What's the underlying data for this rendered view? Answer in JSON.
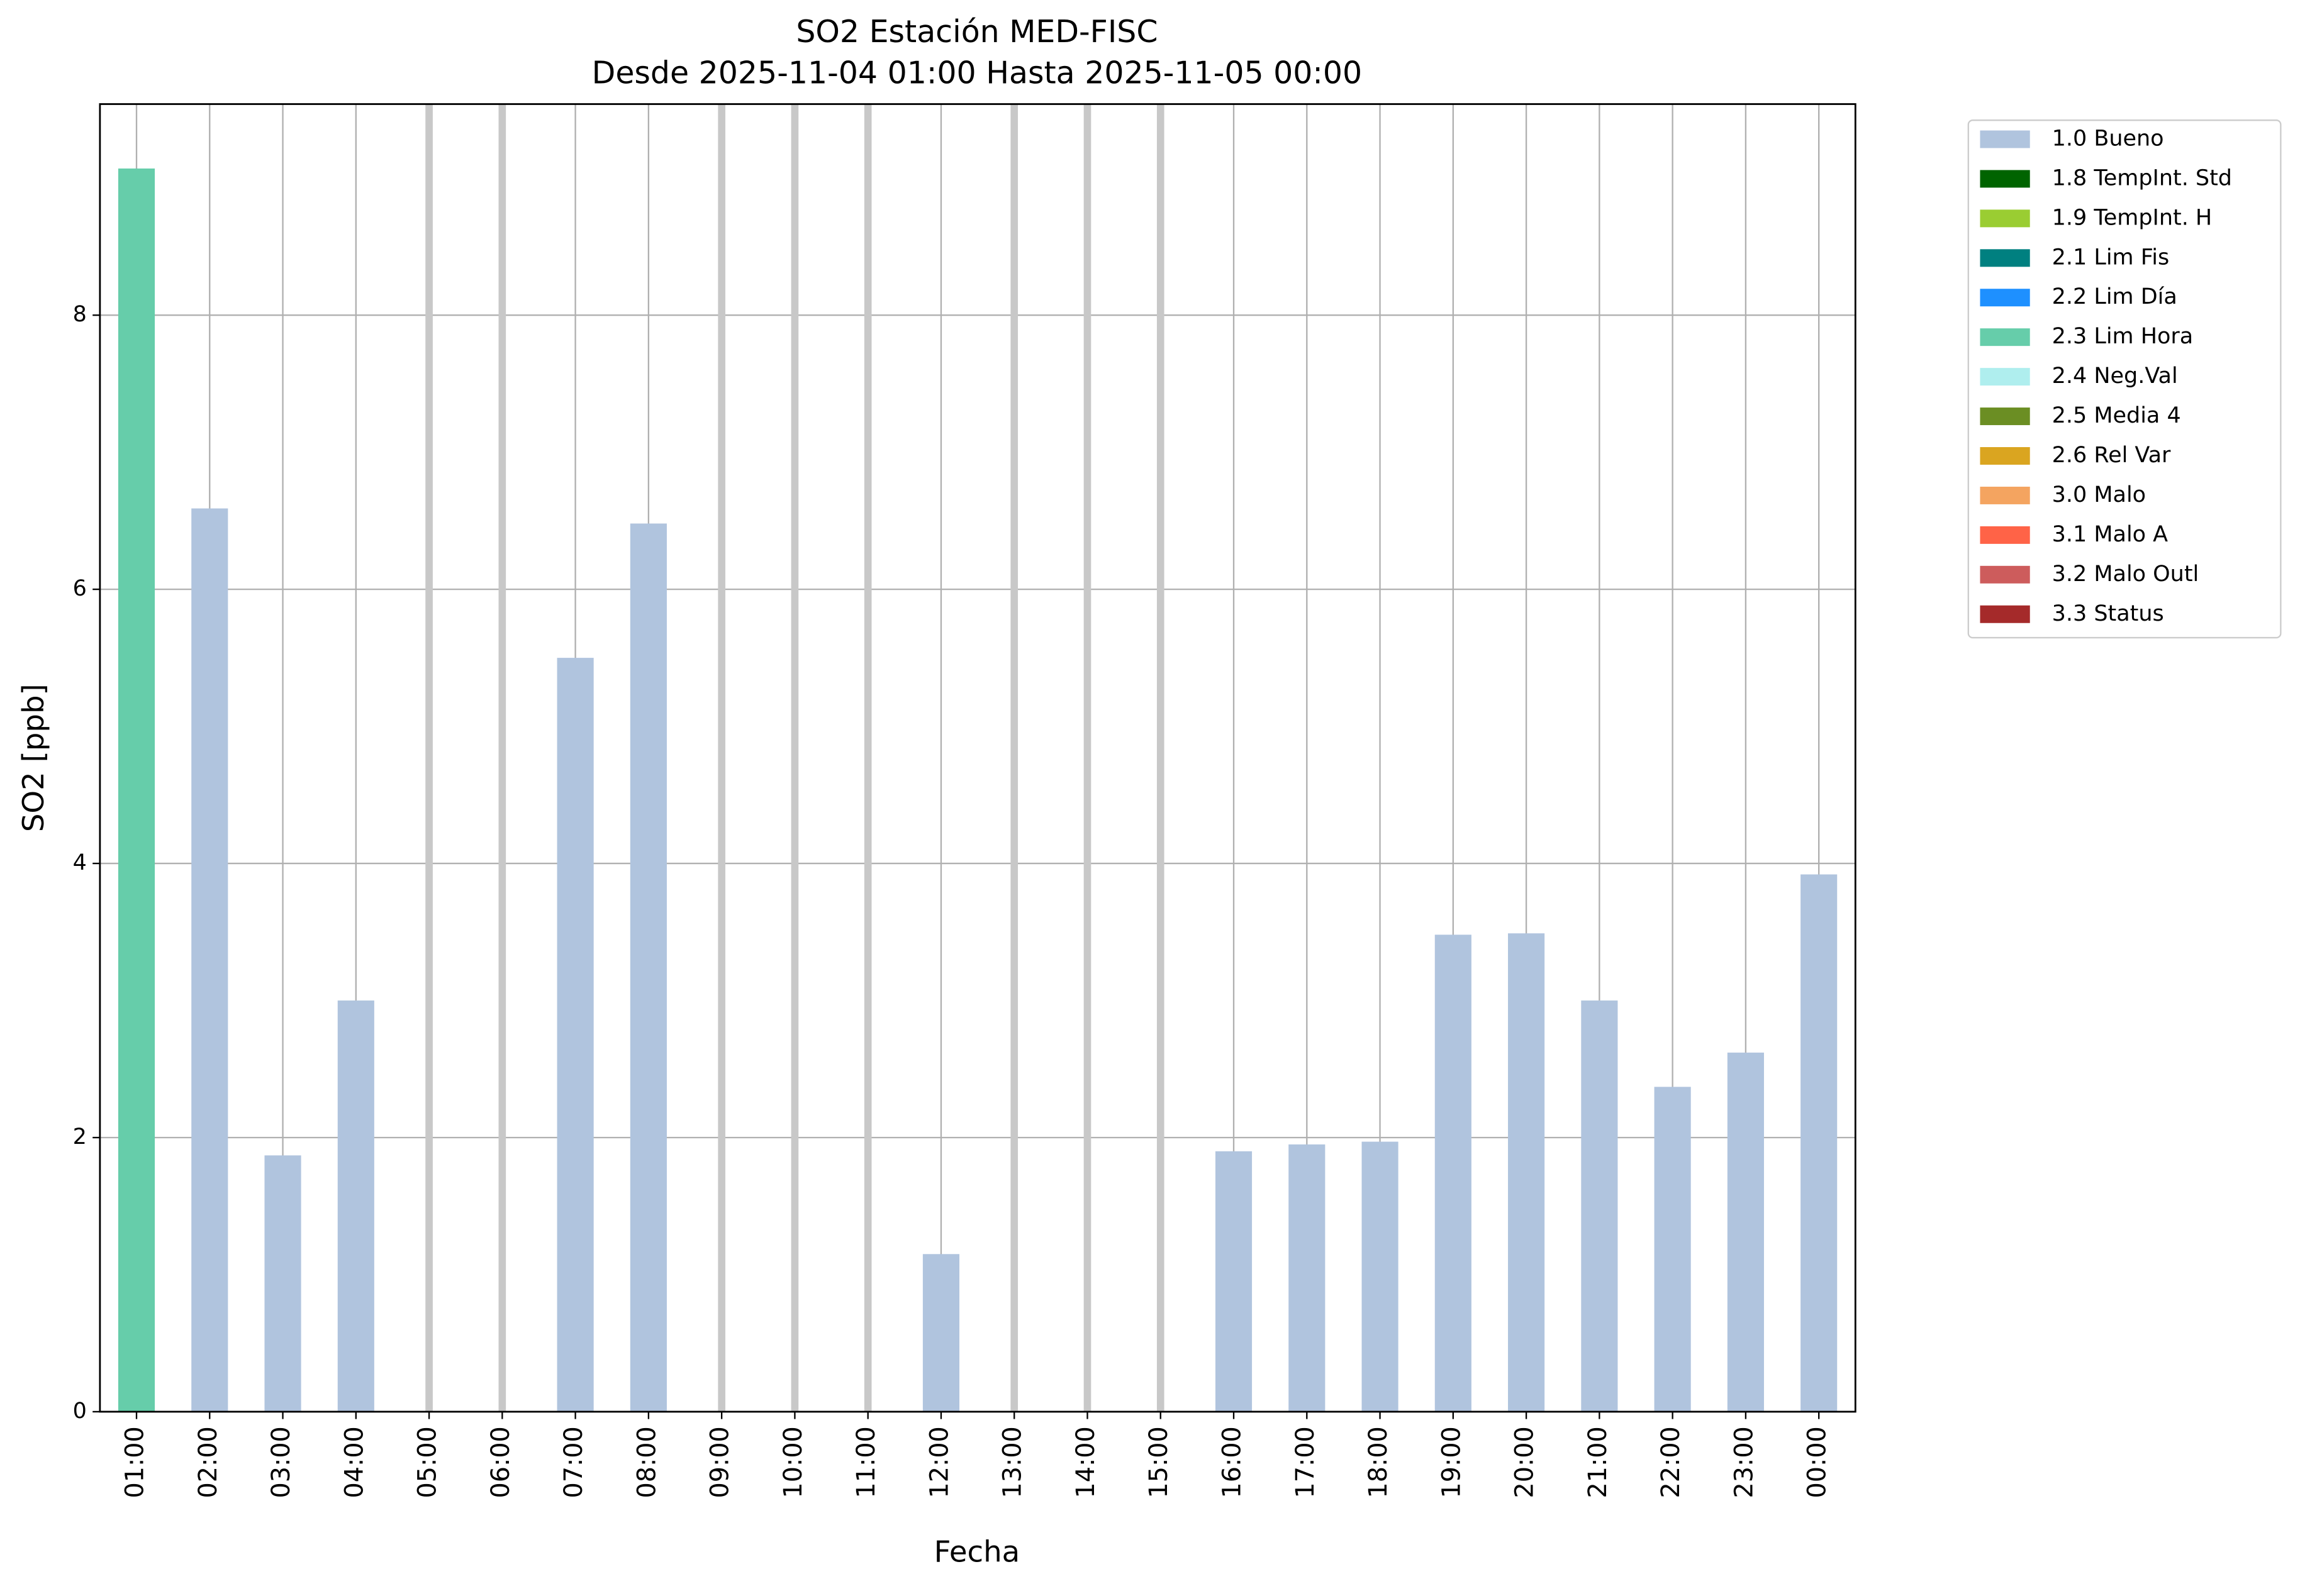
{
  "chart_data": {
    "type": "bar",
    "title": "SO2 Estación MED-FISC",
    "subtitle": "Desde 2025-11-04 01:00 Hasta 2025-11-05 00:00",
    "x_label": "Fecha",
    "y_label": "SO2 [ppb]",
    "categories": [
      "01:00",
      "02:00",
      "03:00",
      "04:00",
      "05:00",
      "06:00",
      "07:00",
      "08:00",
      "09:00",
      "10:00",
      "11:00",
      "12:00",
      "13:00",
      "14:00",
      "15:00",
      "16:00",
      "17:00",
      "18:00",
      "19:00",
      "20:00",
      "21:00",
      "22:00",
      "23:00",
      "00:00"
    ],
    "series": [
      {
        "name": "1.0 Bueno",
        "color": "#b0c4de",
        "values": [
          null,
          6.59,
          1.87,
          3.0,
          null,
          null,
          5.5,
          6.48,
          null,
          null,
          null,
          1.15,
          null,
          null,
          null,
          1.9,
          1.95,
          1.97,
          3.48,
          3.49,
          3.0,
          2.37,
          2.62,
          3.92
        ]
      },
      {
        "name": "1.8 TempInt. Std",
        "color": "#006400",
        "values": [
          null,
          null,
          null,
          null,
          null,
          null,
          null,
          null,
          null,
          null,
          null,
          null,
          null,
          null,
          null,
          null,
          null,
          null,
          null,
          null,
          null,
          null,
          null,
          null
        ]
      },
      {
        "name": "1.9 TempInt. H",
        "color": "#9acd32",
        "values": [
          null,
          null,
          null,
          null,
          null,
          null,
          null,
          null,
          null,
          null,
          null,
          null,
          null,
          null,
          null,
          null,
          null,
          null,
          null,
          null,
          null,
          null,
          null,
          null
        ]
      },
      {
        "name": "2.1 Lim Fis",
        "color": "#008080",
        "values": [
          null,
          null,
          null,
          null,
          null,
          null,
          null,
          null,
          null,
          null,
          null,
          null,
          null,
          null,
          null,
          null,
          null,
          null,
          null,
          null,
          null,
          null,
          null,
          null
        ]
      },
      {
        "name": "2.2 Lim Día",
        "color": "#1e90ff",
        "values": [
          null,
          null,
          null,
          null,
          null,
          null,
          null,
          null,
          null,
          null,
          null,
          null,
          null,
          null,
          null,
          null,
          null,
          null,
          null,
          null,
          null,
          null,
          null,
          null
        ]
      },
      {
        "name": "2.3 Lim Hora",
        "color": "#66cdaa",
        "values": [
          9.07,
          null,
          null,
          null,
          null,
          null,
          null,
          null,
          null,
          null,
          null,
          null,
          null,
          null,
          null,
          null,
          null,
          null,
          null,
          null,
          null,
          null,
          null,
          null
        ]
      },
      {
        "name": "2.4 Neg.Val",
        "color": "#afeeee",
        "values": [
          null,
          null,
          null,
          null,
          null,
          null,
          null,
          null,
          null,
          null,
          null,
          null,
          null,
          null,
          null,
          null,
          null,
          null,
          null,
          null,
          null,
          null,
          null,
          null
        ]
      },
      {
        "name": "2.5 Media 4",
        "color": "#6b8e23",
        "values": [
          null,
          null,
          null,
          null,
          null,
          null,
          null,
          null,
          null,
          null,
          null,
          null,
          null,
          null,
          null,
          null,
          null,
          null,
          null,
          null,
          null,
          null,
          null,
          null
        ]
      },
      {
        "name": "2.6 Rel Var",
        "color": "#daa520",
        "values": [
          null,
          null,
          null,
          null,
          null,
          null,
          null,
          null,
          null,
          null,
          null,
          null,
          null,
          null,
          null,
          null,
          null,
          null,
          null,
          null,
          null,
          null,
          null,
          null
        ]
      },
      {
        "name": "3.0 Malo",
        "color": "#f4a460",
        "values": [
          null,
          null,
          null,
          null,
          null,
          null,
          null,
          null,
          null,
          null,
          null,
          null,
          null,
          null,
          null,
          null,
          null,
          null,
          null,
          null,
          null,
          null,
          null,
          null
        ]
      },
      {
        "name": "3.1 Malo A",
        "color": "#ff6347",
        "values": [
          null,
          null,
          null,
          null,
          null,
          null,
          null,
          null,
          null,
          null,
          null,
          null,
          null,
          null,
          null,
          null,
          null,
          null,
          null,
          null,
          null,
          null,
          null,
          null
        ]
      },
      {
        "name": "3.2 Malo Outl",
        "color": "#cd5c5c",
        "values": [
          null,
          null,
          null,
          null,
          null,
          null,
          null,
          null,
          null,
          null,
          null,
          null,
          null,
          null,
          null,
          null,
          null,
          null,
          null,
          null,
          null,
          null,
          null,
          null
        ]
      },
      {
        "name": "3.3 Status",
        "color": "#a52a2a",
        "values": [
          null,
          null,
          null,
          null,
          null,
          null,
          null,
          null,
          null,
          null,
          null,
          null,
          null,
          null,
          null,
          null,
          null,
          null,
          null,
          null,
          null,
          null,
          null,
          null
        ]
      }
    ],
    "ylim": [
      0,
      9.54
    ],
    "yticks": [
      0,
      2,
      4,
      6,
      8
    ],
    "grid": true,
    "stacked": true,
    "legend": "outside-right"
  }
}
